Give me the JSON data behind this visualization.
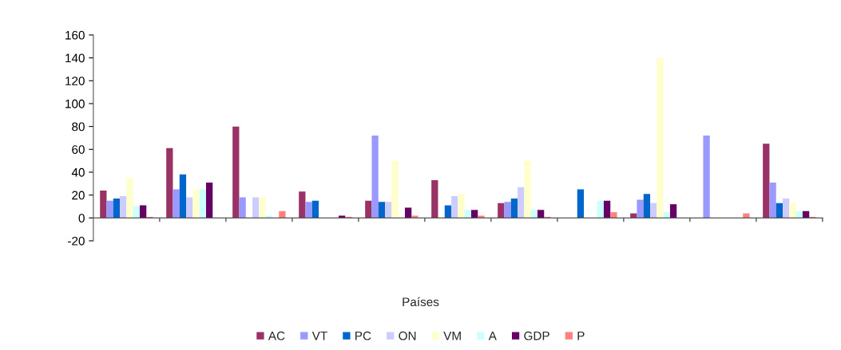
{
  "chart_data": {
    "type": "bar",
    "annotations": [
      "Países"
    ],
    "categories": [
      null,
      null,
      null,
      null,
      null,
      null,
      null,
      null,
      null,
      null,
      null
    ],
    "series": [
      {
        "name": "AC",
        "color": "#993366",
        "values": [
          24,
          61,
          80,
          23,
          15,
          33,
          13,
          0,
          4,
          0,
          65
        ]
      },
      {
        "name": "VT",
        "color": "#9999ff",
        "values": [
          15,
          25,
          18,
          14,
          72,
          0,
          14,
          0,
          16,
          72,
          31
        ]
      },
      {
        "name": "PC",
        "color": "#0066cc",
        "values": [
          17,
          38,
          0,
          15,
          14,
          11,
          17,
          25,
          21,
          0,
          13
        ]
      },
      {
        "name": "ON",
        "color": "#ccccff",
        "values": [
          19,
          18,
          18,
          0,
          14,
          19,
          27,
          0,
          13,
          0,
          17
        ]
      },
      {
        "name": "VM",
        "color": "#ffffcc",
        "values": [
          35,
          25,
          18,
          0,
          50,
          21,
          50,
          0,
          140,
          0,
          13
        ]
      },
      {
        "name": "A",
        "color": "#ccffff",
        "values": [
          10,
          25,
          2,
          null,
          null,
          7,
          7,
          15,
          5,
          0,
          6
        ]
      },
      {
        "name": "GDP",
        "color": "#660066",
        "values": [
          11,
          31,
          0,
          2,
          9,
          7,
          7,
          15,
          12,
          0,
          6
        ]
      },
      {
        "name": "P",
        "color": "#ff8080",
        "values": [
          1,
          0,
          6,
          1,
          2,
          2,
          1,
          5,
          0,
          4,
          1
        ]
      }
    ],
    "ylim": [
      -20,
      160
    ],
    "yticks": [
      -20,
      0,
      20,
      40,
      60,
      80,
      100,
      120,
      140,
      160
    ],
    "legend": "bottom"
  }
}
